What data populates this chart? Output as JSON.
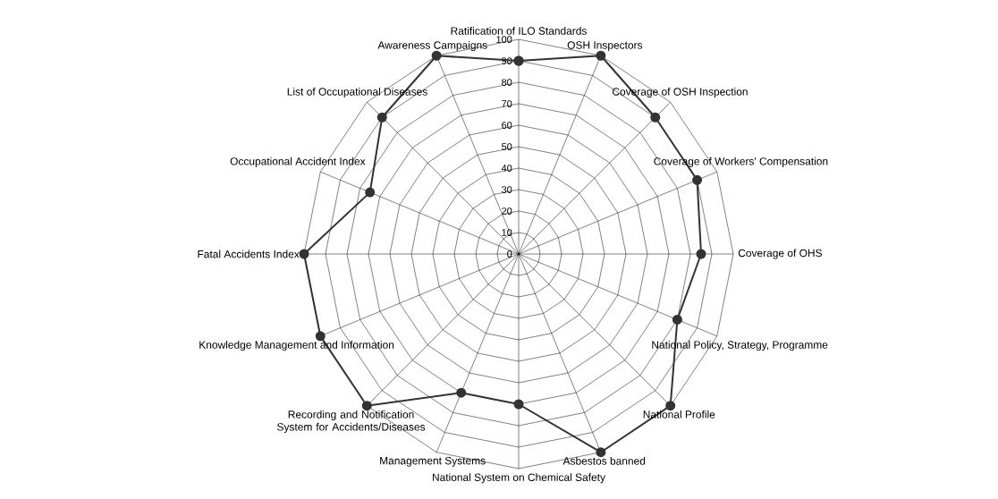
{
  "chart_data": {
    "type": "radar",
    "categories": [
      "Ratification of ILO Standards",
      "OSH Inspectors",
      "Coverage of OSH Inspection",
      "Coverage of Workers' Compensation",
      "Coverage of OHS",
      "National Policy, Strategy, Programme",
      "National Profile",
      "Asbestos banned",
      "National System on Chemical Safety",
      "Management Systems",
      "Recording and Notification System for Accidents/Diseases",
      "Knowledge Management and Information",
      "Fatal Accidents Index",
      "Occupational Accident Index",
      "List of Occupational Diseases",
      "Awareness Campaigns"
    ],
    "series": [
      {
        "color": "#333333",
        "values": [
          90,
          100,
          90,
          90,
          85,
          80,
          100,
          100,
          70,
          70,
          100,
          100,
          100,
          75,
          90,
          100
        ]
      }
    ],
    "ylim": [
      0,
      100
    ],
    "yticks": [
      0,
      10,
      20,
      30,
      40,
      50,
      60,
      70,
      80,
      90,
      100
    ],
    "grid": true,
    "marker": "circle",
    "line_style": "solid"
  }
}
